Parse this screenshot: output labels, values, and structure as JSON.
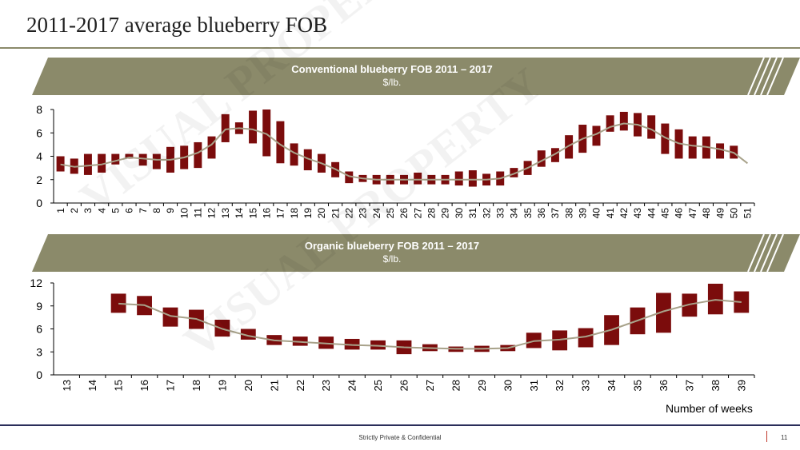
{
  "page": {
    "title": "2011-2017 average blueberry FOB",
    "footer": "Strictly Private & Confidential",
    "page_number": "11",
    "watermark": "VISUAL PROPERTY"
  },
  "colors": {
    "box": "#7b0c0c",
    "trend": "#a8a28a",
    "banner": "#8b8a6a"
  },
  "chart_data": [
    {
      "type": "box",
      "title": "Conventional blueberry FOB 2011 – 2017",
      "subtitle": "$/lb.",
      "ylim": [
        0,
        8
      ],
      "yticks": [
        0,
        2,
        4,
        6,
        8
      ],
      "categories": [
        "1",
        "2",
        "3",
        "4",
        "5",
        "6",
        "7",
        "8",
        "9",
        "10",
        "11",
        "12",
        "13",
        "14",
        "15",
        "16",
        "17",
        "18",
        "19",
        "20",
        "21",
        "22",
        "23",
        "24",
        "25",
        "26",
        "27",
        "28",
        "29",
        "30",
        "31",
        "32",
        "33",
        "34",
        "35",
        "36",
        "37",
        "38",
        "39",
        "40",
        "41",
        "42",
        "43",
        "44",
        "45",
        "46",
        "47",
        "48",
        "49",
        "50",
        "51"
      ],
      "low": [
        2.7,
        2.5,
        2.4,
        2.6,
        3.3,
        3.8,
        3.2,
        2.9,
        2.6,
        2.9,
        3.0,
        3.8,
        5.2,
        5.9,
        5.1,
        4.0,
        3.4,
        3.2,
        2.8,
        2.6,
        2.2,
        1.7,
        1.8,
        1.6,
        1.6,
        1.6,
        1.6,
        1.6,
        1.6,
        1.5,
        1.4,
        1.5,
        1.5,
        2.2,
        2.4,
        3.1,
        3.5,
        3.8,
        4.3,
        4.9,
        6.1,
        6.2,
        5.7,
        5.5,
        4.2,
        3.8,
        3.8,
        3.8,
        3.8,
        3.8,
        null
      ],
      "high": [
        4.0,
        3.8,
        4.2,
        4.2,
        4.2,
        4.2,
        4.2,
        4.2,
        4.8,
        4.9,
        5.2,
        5.7,
        7.6,
        6.9,
        7.9,
        8.0,
        7.0,
        5.1,
        4.6,
        4.2,
        3.5,
        2.7,
        2.4,
        2.4,
        2.4,
        2.4,
        2.6,
        2.4,
        2.4,
        2.7,
        2.8,
        2.5,
        2.7,
        3.0,
        3.6,
        4.5,
        4.7,
        5.8,
        6.7,
        6.6,
        7.5,
        7.8,
        7.7,
        7.5,
        6.8,
        6.3,
        5.7,
        5.7,
        5.1,
        4.9,
        null
      ],
      "avg": [
        3.3,
        3.1,
        3.2,
        3.3,
        3.6,
        3.9,
        3.8,
        3.7,
        3.7,
        3.9,
        4.3,
        5.0,
        6.3,
        6.4,
        6.3,
        5.9,
        5.0,
        4.3,
        3.8,
        3.4,
        2.9,
        2.3,
        2.1,
        2.0,
        2.0,
        2.0,
        2.0,
        2.0,
        2.0,
        2.0,
        2.0,
        2.0,
        2.1,
        2.5,
        3.0,
        3.6,
        4.2,
        4.9,
        5.5,
        5.9,
        6.5,
        6.8,
        6.7,
        6.3,
        5.6,
        5.1,
        4.9,
        4.8,
        4.6,
        4.3,
        3.4
      ]
    },
    {
      "type": "box",
      "title": "Organic blueberry FOB 2011 – 2017",
      "subtitle": "$/lb.",
      "xlabel": "Number of weeks",
      "ylim": [
        0,
        12
      ],
      "yticks": [
        0,
        3,
        6,
        9,
        12
      ],
      "categories": [
        "13",
        "14",
        "15",
        "16",
        "17",
        "18",
        "19",
        "20",
        "21",
        "22",
        "23",
        "24",
        "25",
        "26",
        "27",
        "28",
        "29",
        "30",
        "31",
        "32",
        "33",
        "34",
        "35",
        "36",
        "37",
        "38",
        "39"
      ],
      "low": [
        null,
        null,
        8.1,
        7.8,
        6.3,
        6.0,
        5.0,
        4.6,
        3.9,
        3.8,
        3.4,
        3.3,
        3.3,
        2.7,
        3.1,
        3.0,
        3.0,
        3.1,
        3.5,
        3.2,
        3.6,
        3.9,
        5.3,
        5.5,
        7.6,
        7.9,
        8.1
      ],
      "high": [
        null,
        null,
        10.6,
        10.3,
        8.8,
        8.5,
        7.2,
        6.0,
        5.2,
        5.0,
        5.0,
        4.7,
        4.5,
        4.5,
        4.0,
        3.7,
        3.8,
        3.9,
        5.5,
        5.8,
        6.1,
        7.8,
        8.8,
        10.7,
        10.6,
        11.9,
        10.9
      ],
      "avg": [
        null,
        null,
        9.3,
        9.1,
        7.7,
        7.3,
        6.0,
        5.1,
        4.5,
        4.3,
        4.1,
        3.9,
        3.8,
        3.6,
        3.5,
        3.4,
        3.4,
        3.5,
        4.4,
        4.6,
        5.0,
        5.9,
        7.1,
        8.3,
        9.2,
        9.8,
        9.5
      ]
    }
  ]
}
